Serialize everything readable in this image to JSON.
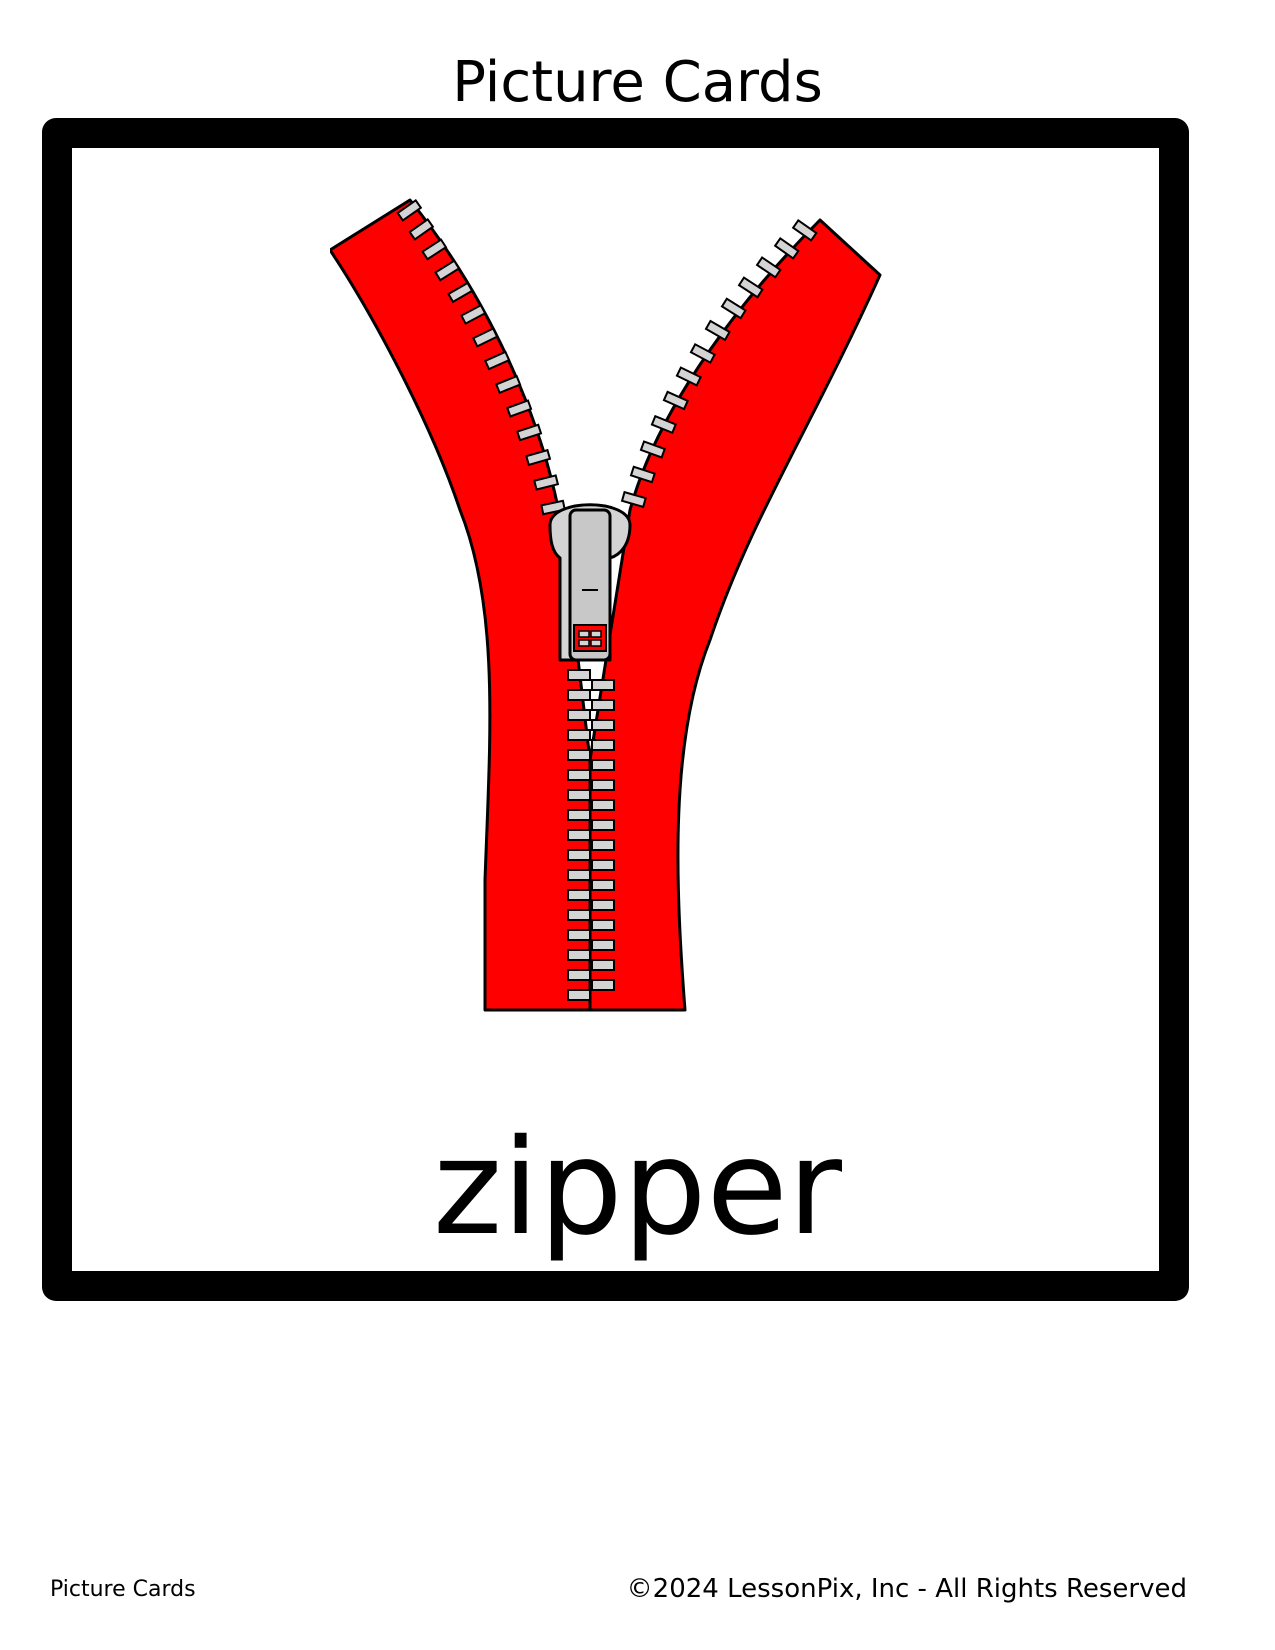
{
  "header": {
    "title": "Picture Cards"
  },
  "card": {
    "word": "zipper",
    "illustration": "zipper-icon",
    "colors": {
      "tape": "#ff0000",
      "teeth": "#d4d4d4",
      "outline": "#000000"
    }
  },
  "footer": {
    "left_text": "Picture Cards",
    "copyright": "©2024 LessonPix, Inc - All Rights Reserved"
  }
}
